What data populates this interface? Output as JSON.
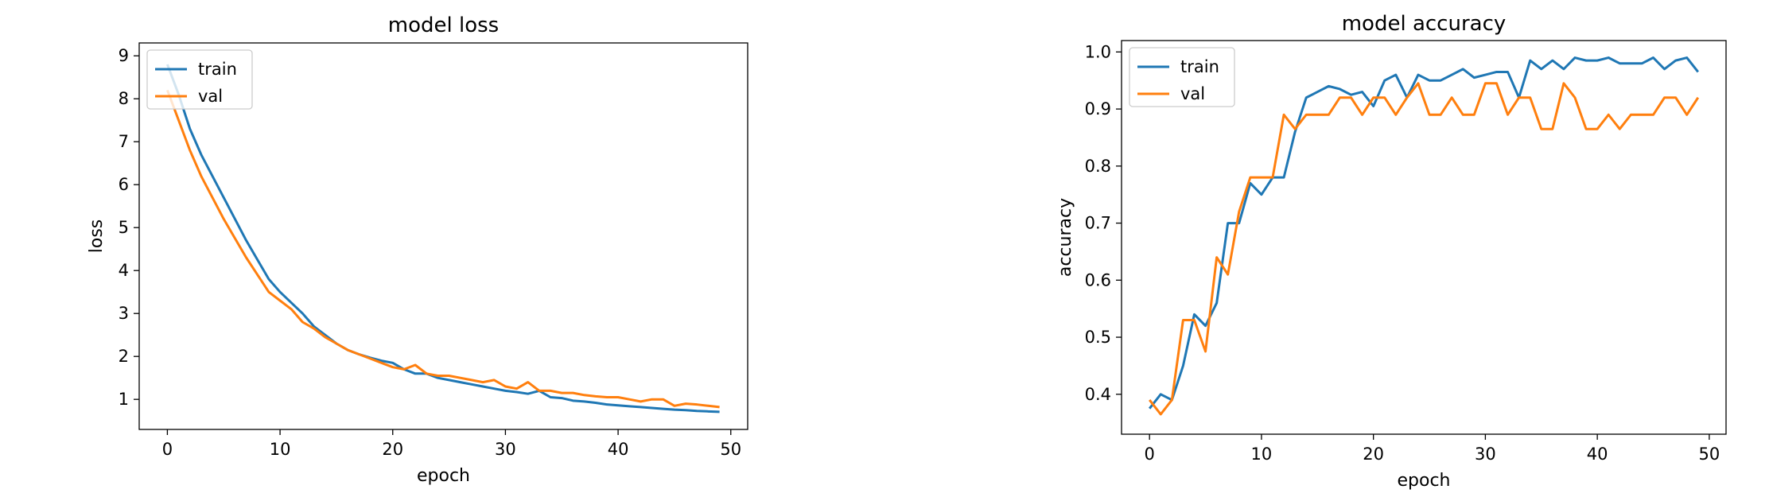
{
  "chart_data": [
    {
      "type": "line",
      "title": "model loss",
      "xlabel": "epoch",
      "ylabel": "loss",
      "xlim": [
        -2.5,
        51.5
      ],
      "ylim": [
        0.3,
        9.3
      ],
      "xticks": [
        0,
        10,
        20,
        30,
        40,
        50
      ],
      "yticks": [
        1,
        2,
        3,
        4,
        5,
        6,
        7,
        8,
        9
      ],
      "grid": false,
      "legend_loc": "upper left",
      "x": [
        0,
        1,
        2,
        3,
        4,
        5,
        6,
        7,
        8,
        9,
        10,
        11,
        12,
        13,
        14,
        15,
        16,
        17,
        18,
        19,
        20,
        21,
        22,
        23,
        24,
        25,
        26,
        27,
        28,
        29,
        30,
        31,
        32,
        33,
        34,
        35,
        36,
        37,
        38,
        39,
        40,
        41,
        42,
        43,
        44,
        45,
        46,
        47,
        48,
        49
      ],
      "series": [
        {
          "name": "train",
          "color": "#1f77b4",
          "values": [
            8.8,
            8.1,
            7.3,
            6.7,
            6.2,
            5.7,
            5.2,
            4.7,
            4.25,
            3.8,
            3.5,
            3.25,
            3.0,
            2.7,
            2.5,
            2.3,
            2.15,
            2.05,
            1.97,
            1.9,
            1.85,
            1.7,
            1.6,
            1.6,
            1.5,
            1.45,
            1.4,
            1.35,
            1.3,
            1.25,
            1.2,
            1.17,
            1.13,
            1.2,
            1.05,
            1.03,
            0.97,
            0.95,
            0.92,
            0.88,
            0.86,
            0.84,
            0.82,
            0.8,
            0.78,
            0.76,
            0.75,
            0.73,
            0.72,
            0.71
          ]
        },
        {
          "name": "val",
          "color": "#ff7f0e",
          "values": [
            8.2,
            7.5,
            6.8,
            6.2,
            5.7,
            5.2,
            4.75,
            4.3,
            3.9,
            3.5,
            3.3,
            3.1,
            2.8,
            2.65,
            2.45,
            2.3,
            2.15,
            2.05,
            1.95,
            1.85,
            1.75,
            1.7,
            1.8,
            1.6,
            1.55,
            1.55,
            1.5,
            1.45,
            1.4,
            1.45,
            1.3,
            1.25,
            1.4,
            1.2,
            1.2,
            1.15,
            1.15,
            1.1,
            1.07,
            1.05,
            1.05,
            1.0,
            0.95,
            1.0,
            1.0,
            0.85,
            0.9,
            0.88,
            0.85,
            0.82
          ]
        }
      ]
    },
    {
      "type": "line",
      "title": "model accuracy",
      "xlabel": "epoch",
      "ylabel": "accuracy",
      "xlim": [
        -2.5,
        51.5
      ],
      "ylim": [
        0.33,
        1.02
      ],
      "xticks": [
        0,
        10,
        20,
        30,
        40,
        50
      ],
      "yticks": [
        0.4,
        0.5,
        0.6,
        0.7,
        0.8,
        0.9,
        1.0
      ],
      "grid": false,
      "legend_loc": "upper left",
      "x": [
        0,
        1,
        2,
        3,
        4,
        5,
        6,
        7,
        8,
        9,
        10,
        11,
        12,
        13,
        14,
        15,
        16,
        17,
        18,
        19,
        20,
        21,
        22,
        23,
        24,
        25,
        26,
        27,
        28,
        29,
        30,
        31,
        32,
        33,
        34,
        35,
        36,
        37,
        38,
        39,
        40,
        41,
        42,
        43,
        44,
        45,
        46,
        47,
        48,
        49
      ],
      "series": [
        {
          "name": "train",
          "color": "#1f77b4",
          "values": [
            0.375,
            0.4,
            0.39,
            0.45,
            0.54,
            0.52,
            0.56,
            0.7,
            0.7,
            0.77,
            0.75,
            0.78,
            0.78,
            0.86,
            0.92,
            0.93,
            0.94,
            0.935,
            0.925,
            0.93,
            0.905,
            0.95,
            0.96,
            0.92,
            0.96,
            0.95,
            0.95,
            0.96,
            0.97,
            0.955,
            0.96,
            0.965,
            0.965,
            0.92,
            0.985,
            0.97,
            0.985,
            0.97,
            0.99,
            0.985,
            0.985,
            0.99,
            0.98,
            0.98,
            0.98,
            0.99,
            0.97,
            0.985,
            0.99,
            0.965
          ]
        },
        {
          "name": "val",
          "color": "#ff7f0e",
          "values": [
            0.39,
            0.365,
            0.39,
            0.53,
            0.53,
            0.475,
            0.64,
            0.61,
            0.72,
            0.78,
            0.78,
            0.78,
            0.89,
            0.865,
            0.89,
            0.89,
            0.89,
            0.92,
            0.92,
            0.89,
            0.92,
            0.92,
            0.89,
            0.92,
            0.945,
            0.89,
            0.89,
            0.92,
            0.89,
            0.89,
            0.945,
            0.945,
            0.89,
            0.92,
            0.92,
            0.865,
            0.865,
            0.945,
            0.92,
            0.865,
            0.865,
            0.89,
            0.865,
            0.89,
            0.89,
            0.89,
            0.92,
            0.92,
            0.89,
            0.92
          ]
        }
      ]
    }
  ]
}
